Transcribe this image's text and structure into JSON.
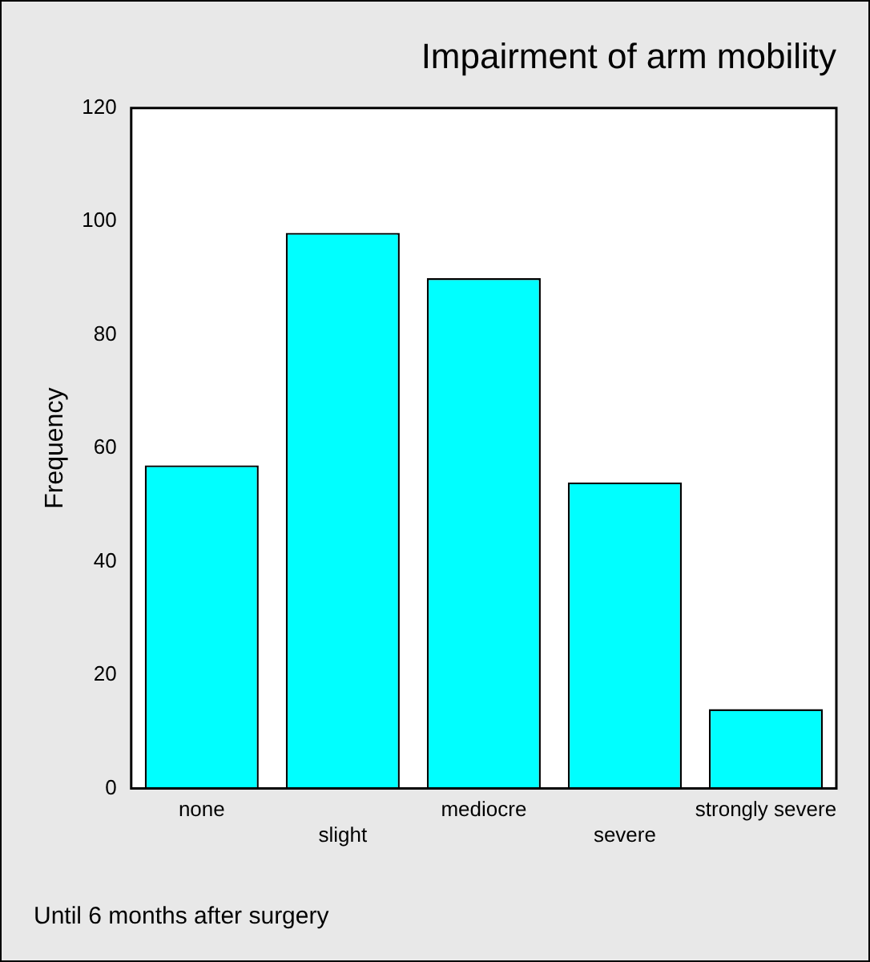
{
  "chart_data": {
    "type": "bar",
    "title": "Impairment of arm mobility",
    "ylabel": "Frequency",
    "categories": [
      "none",
      "slight",
      "mediocre",
      "severe",
      "strongly severe"
    ],
    "values": [
      57,
      98,
      90,
      54,
      14
    ],
    "color": "#00ffff",
    "ylim": [
      0,
      120
    ],
    "yticks": [
      0,
      20,
      40,
      60,
      80,
      100,
      120
    ],
    "grid": false,
    "annotations": [
      "Until 6 months after surgery"
    ]
  }
}
